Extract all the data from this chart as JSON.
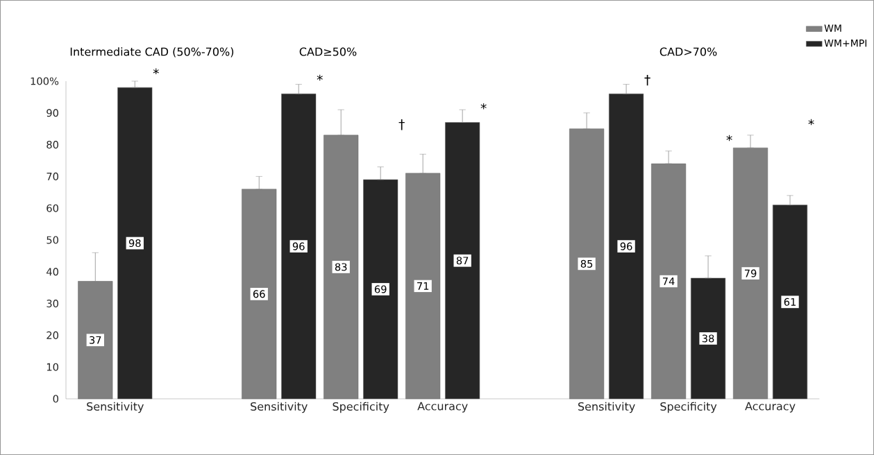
{
  "chart_data": {
    "type": "bar",
    "annotations": [
      "Intermediate CAD (50%-70%)",
      "CAD≥50%",
      "CAD>70%",
      "*",
      "*",
      "†",
      "*",
      "†",
      "*",
      "*"
    ],
    "categories": [
      "Sensitivity",
      null,
      "Sensitivity",
      "Specificity",
      "Accuracy",
      null,
      "Sensitivity",
      "Specificity",
      "Accuracy"
    ],
    "series": [
      {
        "name": "WM",
        "color": "#808080",
        "values": [
          37,
          null,
          66,
          83,
          71,
          null,
          85,
          74,
          79
        ],
        "errors": [
          [
            37,
            46
          ],
          null,
          [
            66,
            70
          ],
          [
            83,
            91
          ],
          [
            71,
            77
          ],
          null,
          [
            85,
            90
          ],
          [
            74,
            78
          ],
          [
            79,
            83
          ]
        ]
      },
      {
        "name": "WM+MPI",
        "color": "#262626",
        "values": [
          98,
          null,
          96,
          69,
          87,
          null,
          96,
          38,
          61
        ],
        "errors": [
          [
            98,
            100
          ],
          null,
          [
            96,
            99
          ],
          [
            69,
            73
          ],
          [
            87,
            91
          ],
          null,
          [
            96,
            99
          ],
          [
            38,
            45
          ],
          [
            61,
            64
          ]
        ]
      }
    ],
    "ylim": [
      0,
      100
    ],
    "yticks": [
      0,
      10,
      20,
      30,
      40,
      50,
      60,
      70,
      80,
      90,
      {
        "value": 100,
        "label": "100%"
      }
    ],
    "data_labels": true,
    "legend": "top right"
  }
}
